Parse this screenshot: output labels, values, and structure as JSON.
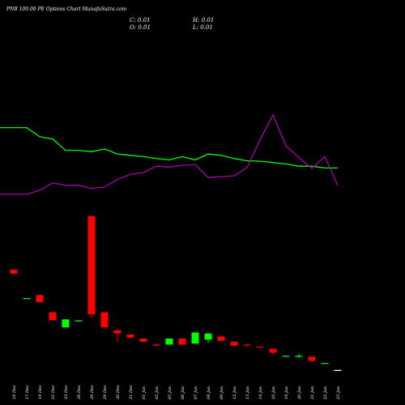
{
  "header": {
    "caption": "PNB 100.00 PE Options Chart MunafaSutra.com",
    "close_label": "C: 0.01",
    "open_label": "O: 0.01",
    "high_label": "H: 0.01",
    "low_label": "L: 0.01"
  },
  "colors": {
    "background": "#000000",
    "up": "#00ff00",
    "down": "#ff0000",
    "avg_green": "#00ff00",
    "avg_magenta": "#aa00aa",
    "doji": "#ffffff",
    "text": "#ffffff"
  },
  "chart_data": {
    "type": "candlestick",
    "title": "PNB 100.00 PE Options Chart MunafaSutra.com",
    "categories": [
      "16 Dec",
      "17 Dec",
      "19 Dec",
      "22 Dec",
      "23 Dec",
      "26 Dec",
      "29 Dec",
      "29 Dec",
      "30 Dec",
      "31 Dec",
      "01 Jan",
      "02 Jan",
      "05 Jan",
      "06 Jan",
      "07 Jan",
      "08 Jan",
      "09 Jan",
      "12 Jan",
      "13 Jan",
      "14 Jan",
      "16 Jan",
      "19 Jan",
      "20 Jan",
      "21 Jan",
      "22 Jan",
      "23 Jan"
    ],
    "candles": [
      {
        "open": 1.0,
        "high": 1.0,
        "low": 0.96,
        "close": 0.96,
        "color": "down"
      },
      {
        "open": 0.72,
        "high": 0.72,
        "low": 0.72,
        "close": 0.72,
        "color": "up"
      },
      {
        "open": 0.75,
        "high": 0.75,
        "low": 0.68,
        "close": 0.68,
        "color": "down"
      },
      {
        "open": 0.58,
        "high": 0.58,
        "low": 0.5,
        "close": 0.5,
        "color": "down"
      },
      {
        "open": 0.43,
        "high": 0.51,
        "low": 0.43,
        "close": 0.51,
        "color": "up"
      },
      {
        "open": 0.49,
        "high": 0.5,
        "low": 0.49,
        "close": 0.5,
        "color": "up"
      },
      {
        "open": 1.53,
        "high": 1.53,
        "low": 0.52,
        "close": 0.56,
        "color": "down"
      },
      {
        "open": 0.58,
        "high": 0.58,
        "low": 0.43,
        "close": 0.43,
        "color": "down"
      },
      {
        "open": 0.4,
        "high": 0.42,
        "low": 0.29,
        "close": 0.37,
        "color": "down"
      },
      {
        "open": 0.36,
        "high": 0.36,
        "low": 0.32,
        "close": 0.33,
        "color": "down"
      },
      {
        "open": 0.32,
        "high": 0.32,
        "low": 0.28,
        "close": 0.29,
        "color": "down"
      },
      {
        "open": 0.26,
        "high": 0.27,
        "low": 0.25,
        "close": 0.26,
        "color": "down"
      },
      {
        "open": 0.26,
        "high": 0.32,
        "low": 0.26,
        "close": 0.32,
        "color": "up"
      },
      {
        "open": 0.32,
        "high": 0.32,
        "low": 0.26,
        "close": 0.26,
        "color": "down"
      },
      {
        "open": 0.27,
        "high": 0.38,
        "low": 0.27,
        "close": 0.38,
        "color": "up"
      },
      {
        "open": 0.31,
        "high": 0.37,
        "low": 0.28,
        "close": 0.37,
        "color": "up"
      },
      {
        "open": 0.34,
        "high": 0.35,
        "low": 0.29,
        "close": 0.3,
        "color": "down"
      },
      {
        "open": 0.29,
        "high": 0.29,
        "low": 0.25,
        "close": 0.25,
        "color": "down"
      },
      {
        "open": 0.26,
        "high": 0.27,
        "low": 0.24,
        "close": 0.26,
        "color": "down"
      },
      {
        "open": 0.24,
        "high": 0.24,
        "low": 0.23,
        "close": 0.24,
        "color": "down"
      },
      {
        "open": 0.22,
        "high": 0.22,
        "low": 0.16,
        "close": 0.18,
        "color": "down"
      },
      {
        "open": 0.15,
        "high": 0.15,
        "low": 0.15,
        "close": 0.15,
        "color": "up"
      },
      {
        "open": 0.15,
        "high": 0.17,
        "low": 0.13,
        "close": 0.14,
        "color": "up"
      },
      {
        "open": 0.14,
        "high": 0.14,
        "low": 0.09,
        "close": 0.1,
        "color": "down"
      },
      {
        "open": 0.08,
        "high": 0.08,
        "low": 0.08,
        "close": 0.08,
        "color": "up"
      },
      {
        "open": 0.01,
        "high": 0.01,
        "low": 0.01,
        "close": 0.01,
        "color": "doji"
      }
    ],
    "overlay": {
      "green_line": [
        165,
        165,
        145,
        140,
        115,
        115,
        112,
        118,
        107,
        104,
        101,
        97,
        94,
        101,
        94,
        107,
        104,
        97,
        92,
        91,
        88,
        85,
        80,
        80,
        76,
        76
      ],
      "magenta_line": [
        18,
        18,
        27,
        43,
        38,
        38,
        31,
        34,
        51,
        62,
        66,
        80,
        78,
        82,
        84,
        55,
        57,
        59,
        77,
        138,
        193,
        125,
        99,
        75,
        101,
        38
      ]
    },
    "ylim": [
      0,
      1.6
    ],
    "overlay_ylim": [
      0,
      250
    ]
  }
}
